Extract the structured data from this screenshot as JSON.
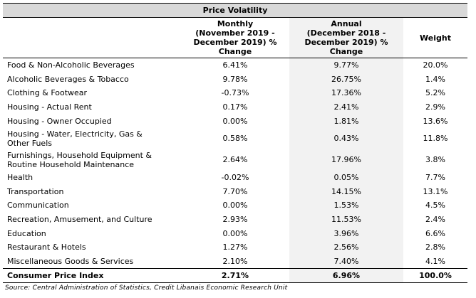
{
  "title": "Price Volatility",
  "headers": {
    "category": "",
    "monthly": [
      "Monthly",
      "(November 2019 -",
      "December 2019) %",
      "Change"
    ],
    "annual": [
      "Annual",
      "(December 2018 -",
      "December 2019) %",
      "Change"
    ],
    "weight": "Weight"
  },
  "rows": [
    {
      "category": [
        "Food & Non-Alcoholic Beverages"
      ],
      "monthly": "6.41%",
      "annual": "9.77%",
      "weight": "20.0%"
    },
    {
      "category": [
        "Alcoholic Beverages & Tobacco"
      ],
      "monthly": "9.78%",
      "annual": "26.75%",
      "weight": "1.4%"
    },
    {
      "category": [
        "Clothing & Footwear"
      ],
      "monthly": "-0.73%",
      "annual": "17.36%",
      "weight": "5.2%"
    },
    {
      "category": [
        "Housing - Actual Rent"
      ],
      "monthly": "0.17%",
      "annual": "2.41%",
      "weight": "2.9%"
    },
    {
      "category": [
        "Housing - Owner Occupied"
      ],
      "monthly": "0.00%",
      "annual": "1.81%",
      "weight": "13.6%"
    },
    {
      "category": [
        "Housing - Water, Electricity, Gas &",
        "Other Fuels"
      ],
      "monthly": "0.58%",
      "annual": "0.43%",
      "weight": "11.8%"
    },
    {
      "category": [
        "Furnishings, Household Equipment &",
        "Routine Household Maintenance"
      ],
      "monthly": "2.64%",
      "annual": "17.96%",
      "weight": "3.8%"
    },
    {
      "category": [
        "Health"
      ],
      "monthly": "-0.02%",
      "annual": "0.05%",
      "weight": "7.7%"
    },
    {
      "category": [
        "Transportation"
      ],
      "monthly": "7.70%",
      "annual": "14.15%",
      "weight": "13.1%"
    },
    {
      "category": [
        "Communication"
      ],
      "monthly": "0.00%",
      "annual": "1.53%",
      "weight": "4.5%"
    },
    {
      "category": [
        "Recreation, Amusement, and Culture"
      ],
      "monthly": "2.93%",
      "annual": "11.53%",
      "weight": "2.4%"
    },
    {
      "category": [
        "Education"
      ],
      "monthly": "0.00%",
      "annual": "3.96%",
      "weight": "6.6%"
    },
    {
      "category": [
        "Restaurant & Hotels"
      ],
      "monthly": "1.27%",
      "annual": "2.56%",
      "weight": "2.8%"
    },
    {
      "category": [
        "Miscellaneous Goods & Services"
      ],
      "monthly": "2.10%",
      "annual": "7.40%",
      "weight": "4.1%"
    }
  ],
  "total": {
    "category": "Consumer Price Index",
    "monthly": "2.71%",
    "annual": "6.96%",
    "weight": "100.0%"
  },
  "source": "Source:  Central Administration of Statistics, Credit Libanais Economic Research Unit",
  "colors": {
    "title_band": "#d9d9d9",
    "annual_column_shade": "#f2f2f2",
    "rules": "#000000"
  }
}
